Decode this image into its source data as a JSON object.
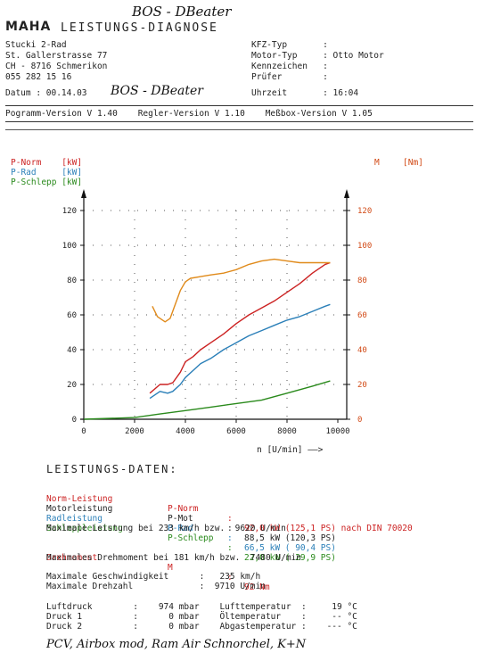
{
  "header": {
    "handwritten_top": "BOS - DBeater",
    "logo": "MAHA",
    "brand": "LEISTUNGS-DIAGNOSE",
    "customer_lines": [
      "Stucki 2-Rad",
      "St. Gallerstrasse 77",
      "CH - 8716 Schmerikon",
      "055 282 15 16"
    ],
    "vehicle_lines": [
      "KFZ-Typ       :",
      "Motor-Typ     : Otto Motor",
      "Kennzeichen   :",
      "Prüfer        :"
    ],
    "datum": "Datum : 00.14.03",
    "handwritten_datum": "BOS - DBeater",
    "uhrzeit": "Uhrzeit       : 16:04",
    "versions": "Pogramm-Version V 1.40    Regler-Version V 1.10    Meßbox-Version V 1.05"
  },
  "legend": {
    "p_norm": "P-Norm    [kW]",
    "p_rad": "P-Rad     [kW]",
    "p_schlepp": "P-Schlepp [kW]",
    "m": "M",
    "m_unit": "[Nm]",
    "x_unit": "n [U/min] ——>"
  },
  "colors": {
    "p_norm": "#cc2222",
    "p_rad": "#2a7fb8",
    "p_schlepp": "#2a8a1c",
    "torque": "#e08a1a",
    "right_axis": "#d24a16"
  },
  "chart_data": {
    "type": "line",
    "xlabel": "n [U/min]",
    "ylabel": "P [kW]",
    "y2label": "M [Nm]",
    "xlim": [
      0,
      10000
    ],
    "ylim": [
      0,
      120
    ],
    "y2lim": [
      0,
      120
    ],
    "x_ticks": [
      0,
      2000,
      4000,
      6000,
      8000,
      10000
    ],
    "y_ticks": [
      0,
      20,
      40,
      60,
      80,
      100,
      120
    ],
    "y2_ticks": [
      0,
      20,
      40,
      60,
      80,
      100,
      120
    ],
    "grid": "dotted",
    "series": [
      {
        "name": "P-Norm",
        "axis": "left",
        "x": [
          2600,
          3000,
          3300,
          3500,
          3800,
          4000,
          4300,
          4600,
          5000,
          5500,
          6000,
          6500,
          7000,
          7500,
          8000,
          8500,
          9000,
          9500,
          9700
        ],
        "y": [
          15,
          20,
          20,
          21,
          27,
          33,
          36,
          40,
          44,
          49,
          55,
          60,
          64,
          68,
          73,
          78,
          84,
          89,
          90
        ]
      },
      {
        "name": "P-Rad",
        "axis": "left",
        "x": [
          2600,
          3000,
          3300,
          3500,
          3800,
          4000,
          4300,
          4600,
          5000,
          5500,
          6000,
          6500,
          7000,
          7500,
          8000,
          8500,
          9000,
          9500,
          9700
        ],
        "y": [
          12,
          16,
          15,
          16,
          20,
          24,
          28,
          32,
          35,
          40,
          44,
          48,
          51,
          54,
          57,
          59,
          62,
          65,
          66
        ]
      },
      {
        "name": "P-Schlepp",
        "axis": "left",
        "x": [
          0,
          2000,
          3000,
          4000,
          5000,
          6000,
          7000,
          8000,
          9000,
          9700
        ],
        "y": [
          0,
          1,
          3,
          5,
          7,
          9,
          11,
          15,
          19,
          22
        ]
      },
      {
        "name": "M",
        "axis": "right",
        "x": [
          2700,
          2900,
          3200,
          3400,
          3600,
          3800,
          4000,
          4200,
          4600,
          5000,
          5500,
          6000,
          6500,
          7000,
          7500,
          8000,
          8500,
          9000,
          9700
        ],
        "y": [
          65,
          59,
          56,
          58,
          66,
          74,
          79,
          81,
          82,
          83,
          84,
          86,
          89,
          91,
          92,
          91,
          90,
          90,
          90
        ]
      }
    ]
  },
  "data_section": {
    "title": "LEISTUNGS-DATEN:",
    "rows": [
      {
        "label": "Norm-Leistung",
        "sym": "P-Norm",
        "sep": ":",
        "value": "92,0 kW (125,1 PS) nach DIN 70020",
        "color": "red"
      },
      {
        "label": "Motorleistung",
        "sym": "P-Mot",
        "sep": ":",
        "value": "88,5 kW (120,3 PS)",
        "color": "black"
      },
      {
        "label": "Radleistung",
        "sym": "P-Rad",
        "sep": ":",
        "value": "66,5 kW ( 90,4 PS)",
        "color": "blue"
      },
      {
        "label": "Schleppleistung",
        "sym": "P-Schlepp",
        "sep": ":",
        "value": "22,0 kW ( 29,9 PS)",
        "color": "green"
      }
    ],
    "max_power_line": "Maximale Leistung bei 233 km/h bzw.  9620 U/min",
    "torque_row": {
      "label": "Drehmoment",
      "sym": "M",
      "sep": ":",
      "value": "92 Nm"
    },
    "max_torque_line": "Maximales Drehmoment bei 181 km/h bzw.  7480 U/min",
    "speed_line": "Maximale Geschwindigkeit      :   235 km/h",
    "rpm_line": "Maximale Drehzahl             :  9710 U/min",
    "env_lines": [
      "Luftdruck        :    974 mbar    Lufttemperatur  :     19 °C",
      "Druck 1          :      0 mbar    Öltemperatur    :     -- °C",
      "Druck 2          :      0 mbar    Abgastemperatur :    --- °C"
    ]
  },
  "handwritten_bottom": "PCV, Airbox mod, Ram Air Schnorchel, K+N"
}
